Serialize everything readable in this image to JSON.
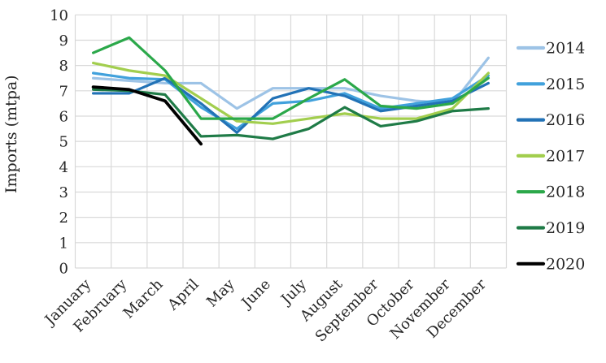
{
  "chart_data": {
    "type": "line",
    "title": "",
    "xlabel": "",
    "ylabel": "Imports (mtpa)",
    "ylim": [
      0,
      10
    ],
    "ytick_step": 1,
    "yticks": [
      0,
      1,
      2,
      3,
      4,
      5,
      6,
      7,
      8,
      9,
      10
    ],
    "grid": true,
    "legend_position": "right",
    "categories": [
      "January",
      "February",
      "March",
      "April",
      "May",
      "June",
      "July",
      "August",
      "September",
      "October",
      "November",
      "December"
    ],
    "series": [
      {
        "name": "2014",
        "color": "#9DC3E6",
        "values": [
          7.5,
          7.4,
          7.3,
          7.3,
          6.3,
          7.1,
          7.1,
          7.1,
          6.8,
          6.6,
          6.5,
          8.3
        ]
      },
      {
        "name": "2015",
        "color": "#41A1DC",
        "values": [
          7.7,
          7.5,
          7.45,
          6.35,
          5.5,
          6.5,
          6.6,
          6.9,
          6.3,
          6.5,
          6.7,
          7.6
        ]
      },
      {
        "name": "2016",
        "color": "#2272B6",
        "values": [
          6.9,
          6.9,
          7.5,
          6.5,
          5.35,
          6.7,
          7.1,
          6.8,
          6.2,
          6.4,
          6.6,
          7.3
        ]
      },
      {
        "name": "2017",
        "color": "#A2CE4E",
        "values": [
          8.1,
          7.8,
          7.6,
          6.7,
          5.8,
          5.7,
          5.9,
          6.1,
          5.9,
          5.9,
          6.3,
          7.7
        ]
      },
      {
        "name": "2018",
        "color": "#2BA84A",
        "values": [
          8.5,
          9.1,
          7.8,
          5.9,
          5.9,
          5.9,
          6.7,
          7.45,
          6.4,
          6.3,
          6.5,
          7.5
        ]
      },
      {
        "name": "2019",
        "color": "#1F7B47",
        "values": [
          7.05,
          7.0,
          6.85,
          5.2,
          5.25,
          5.1,
          5.5,
          6.35,
          5.6,
          5.8,
          6.2,
          6.3
        ]
      },
      {
        "name": "2020",
        "color": "#000000",
        "values": [
          7.15,
          7.05,
          6.6,
          4.9,
          null,
          null,
          null,
          null,
          null,
          null,
          null,
          null
        ]
      }
    ],
    "grid_color": "#D9D9D9",
    "text_color": "#262626"
  }
}
